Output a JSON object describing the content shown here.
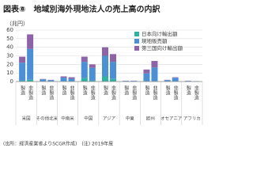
{
  "chart_data": {
    "type": "stacked_bar",
    "title": "図表⑧　地域別海外現地法人の売上高の内訳",
    "y_label": "（兆円）",
    "groups": [
      "米国",
      "その他北米",
      "中南米",
      "中国",
      "アジア",
      "中東",
      "欧州",
      "オセアニア",
      "アフリカ"
    ],
    "categories": [
      "製造",
      "非製造",
      "製造",
      "非製造",
      "製造",
      "非製造",
      "製造",
      "非製造",
      "製造",
      "非製造",
      "製造",
      "非製造",
      "製造",
      "非製造",
      "製造",
      "非製造",
      "製造",
      "非製造"
    ],
    "series": [
      {
        "name": "日本向け輸出額",
        "color": "#2bb3a3",
        "values": [
          1,
          2,
          0.5,
          0.2,
          0.5,
          0.3,
          4,
          1,
          6,
          3,
          0.1,
          0.1,
          0.5,
          0.5,
          0.1,
          0.3,
          0.1,
          0.1
        ]
      },
      {
        "name": "現地販売額",
        "color": "#4a90d9",
        "values": [
          21,
          36,
          2,
          1.5,
          4,
          3,
          19,
          15,
          24,
          20,
          0.7,
          0.7,
          9,
          16,
          1.5,
          4,
          0.7,
          0.3
        ]
      },
      {
        "name": "第三国向け輸出額",
        "color": "#8e63a8",
        "values": [
          7,
          17,
          0.5,
          0.3,
          1.5,
          1.7,
          6,
          4,
          10,
          9,
          0.2,
          0.2,
          4.5,
          7.5,
          0.4,
          0.7,
          0.2,
          0.1
        ]
      }
    ],
    "ylim": [
      0,
      60
    ],
    "yticks": [
      0,
      10,
      20,
      30,
      40,
      50,
      60
    ],
    "grid": true,
    "legend": "top-right",
    "footnote": "(出所：経済産業省よりSCGR作成)　(注) 2019年度"
  }
}
